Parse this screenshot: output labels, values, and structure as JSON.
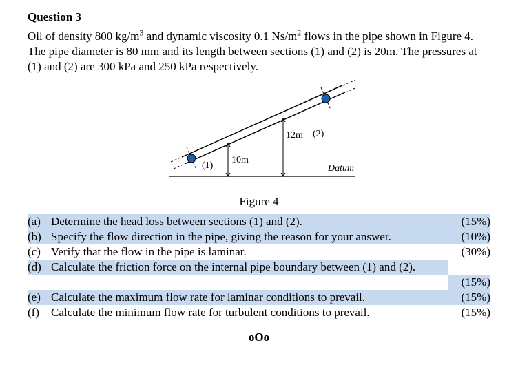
{
  "heading": "Question 3",
  "paragraph_html": "Oil of density 800 kg/m<sup>3</sup> and dynamic viscosity 0.1 Ns/m<sup>2</sup> flows in the pipe shown in Figure 4.  The pipe diameter is 80 mm and its length between sections (1) and (2) is 20m.  The pressures at (1) and (2) are 300 kPa and 250 kPa respectively.",
  "figure": {
    "caption": "Figure 4",
    "label1": "(1)",
    "label2": "(2)",
    "h1": "10m",
    "h2": "12m",
    "datum": "Datum",
    "colors": {
      "stroke": "#000000",
      "fill_node": "#1f5fa8",
      "bg": "#ffffff"
    }
  },
  "parts": [
    {
      "letter": "(a)",
      "text": "Determine the head loss between sections (1) and (2).",
      "pct": "(15%)",
      "highlight": true
    },
    {
      "letter": "(b)",
      "text": "Specify the flow direction in the pipe, giving the reason for your answer.",
      "pct": "(10%)",
      "highlight": true
    },
    {
      "letter": "(c)",
      "text": "Verify that the flow in the pipe is laminar.",
      "pct": "(30%)",
      "highlight": false
    },
    {
      "letter": "(d)",
      "text": "Calculate the friction force on the internal pipe boundary between (1) and (2).",
      "pct": "",
      "highlight": true
    },
    {
      "letter": "",
      "text": "",
      "pct": "(15%)",
      "highlight": true
    },
    {
      "letter": "(e)",
      "text": "Calculate the maximum flow rate for laminar conditions to prevail.",
      "pct": "(15%)",
      "highlight": true
    },
    {
      "letter": "(f)",
      "text": "Calculate the minimum flow rate for turbulent conditions to prevail.",
      "pct": "(15%)",
      "highlight": false
    }
  ],
  "endmark": "oOo"
}
